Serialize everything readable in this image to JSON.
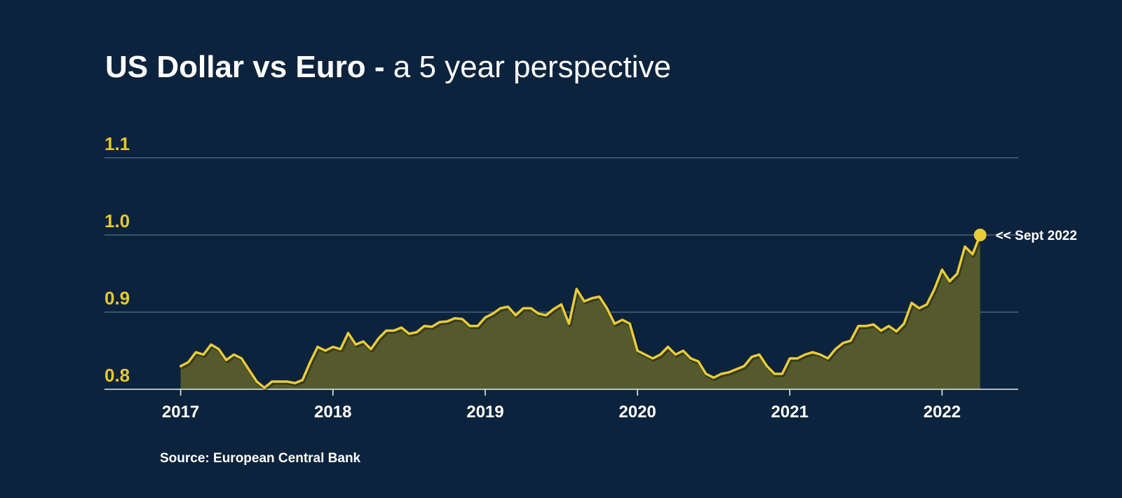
{
  "title": {
    "main": "US Dollar vs Euro - ",
    "subtitle": "a 5 year perspective"
  },
  "source": "Source: European Central Bank",
  "annotation": "<< Sept 2022",
  "colors": {
    "background": "#0c233d",
    "line": "#e9cc38",
    "area": "#545a2d",
    "ytick": "#e6c82e",
    "text": "#ffffff"
  },
  "chart_data": {
    "type": "area",
    "title": "US Dollar vs Euro - a 5 year perspective",
    "xlabel": "",
    "ylabel": "",
    "xlim": [
      2016.5,
      2022.5
    ],
    "ylim": [
      0.8,
      1.1
    ],
    "grid": true,
    "x_ticks": [
      "2017",
      "2018",
      "2019",
      "2020",
      "2021",
      "2022"
    ],
    "x_tick_values": [
      2017,
      2018,
      2019,
      2020,
      2021,
      2022
    ],
    "y_ticks": [
      "0.8",
      "0.9",
      "1.0",
      "1.1"
    ],
    "y_tick_values": [
      0.8,
      0.9,
      1.0,
      1.1
    ],
    "series": [
      {
        "x": [
          2017.0,
          2017.05,
          2017.1,
          2017.15,
          2017.2,
          2017.25,
          2017.3,
          2017.35,
          2017.4,
          2017.45,
          2017.5,
          2017.55,
          2017.6,
          2017.65,
          2017.7,
          2017.75,
          2017.8,
          2017.85,
          2017.9,
          2017.95,
          2018.0,
          2018.05,
          2018.1,
          2018.15,
          2018.2,
          2018.25,
          2018.3,
          2018.35,
          2018.4,
          2018.45,
          2018.5,
          2018.55,
          2018.6,
          2018.65,
          2018.7,
          2018.75,
          2018.8,
          2018.85,
          2018.9,
          2018.95,
          2019.0,
          2019.05,
          2019.1,
          2019.15,
          2019.2,
          2019.25,
          2019.3,
          2019.35,
          2019.4,
          2019.45,
          2019.5,
          2019.55,
          2019.6,
          2019.65,
          2019.7,
          2019.75,
          2019.8,
          2019.85,
          2019.9,
          2019.95,
          2020.0,
          2020.05,
          2020.1,
          2020.15,
          2020.2,
          2020.25,
          2020.3,
          2020.35,
          2020.4,
          2020.45,
          2020.5,
          2020.55,
          2020.6,
          2020.65,
          2020.7,
          2020.75,
          2020.8,
          2020.85,
          2020.9,
          2020.95,
          2021.0,
          2021.05,
          2021.1,
          2021.15,
          2021.2,
          2021.25,
          2021.3,
          2021.35,
          2021.4,
          2021.45,
          2021.5,
          2021.55,
          2021.6,
          2021.65,
          2021.7,
          2021.75,
          2021.8,
          2021.85,
          2021.9,
          2021.95,
          2022.0,
          2022.05,
          2022.1,
          2022.15,
          2022.2,
          2022.25
        ],
        "values": [
          0.83,
          0.835,
          0.848,
          0.845,
          0.858,
          0.852,
          0.838,
          0.845,
          0.84,
          0.825,
          0.81,
          0.802,
          0.81,
          0.81,
          0.81,
          0.808,
          0.812,
          0.835,
          0.855,
          0.85,
          0.855,
          0.852,
          0.873,
          0.858,
          0.862,
          0.852,
          0.866,
          0.876,
          0.876,
          0.88,
          0.872,
          0.874,
          0.882,
          0.881,
          0.887,
          0.888,
          0.892,
          0.891,
          0.882,
          0.882,
          0.893,
          0.898,
          0.905,
          0.907,
          0.896,
          0.905,
          0.905,
          0.898,
          0.896,
          0.904,
          0.91,
          0.885,
          0.93,
          0.914,
          0.918,
          0.92,
          0.905,
          0.885,
          0.89,
          0.885,
          0.85,
          0.845,
          0.84,
          0.845,
          0.855,
          0.845,
          0.85,
          0.84,
          0.836,
          0.82,
          0.815,
          0.82,
          0.822,
          0.826,
          0.83,
          0.842,
          0.845,
          0.83,
          0.82,
          0.82,
          0.84,
          0.84,
          0.845,
          0.848,
          0.845,
          0.84,
          0.852,
          0.86,
          0.863,
          0.882,
          0.882,
          0.884,
          0.876,
          0.882,
          0.875,
          0.885,
          0.912,
          0.905,
          0.91,
          0.93,
          0.955,
          0.94,
          0.95,
          0.985,
          0.975,
          1.0
        ]
      }
    ],
    "annotations": [
      {
        "x": 2022.25,
        "y": 1.0,
        "text": "<< Sept 2022"
      }
    ]
  }
}
